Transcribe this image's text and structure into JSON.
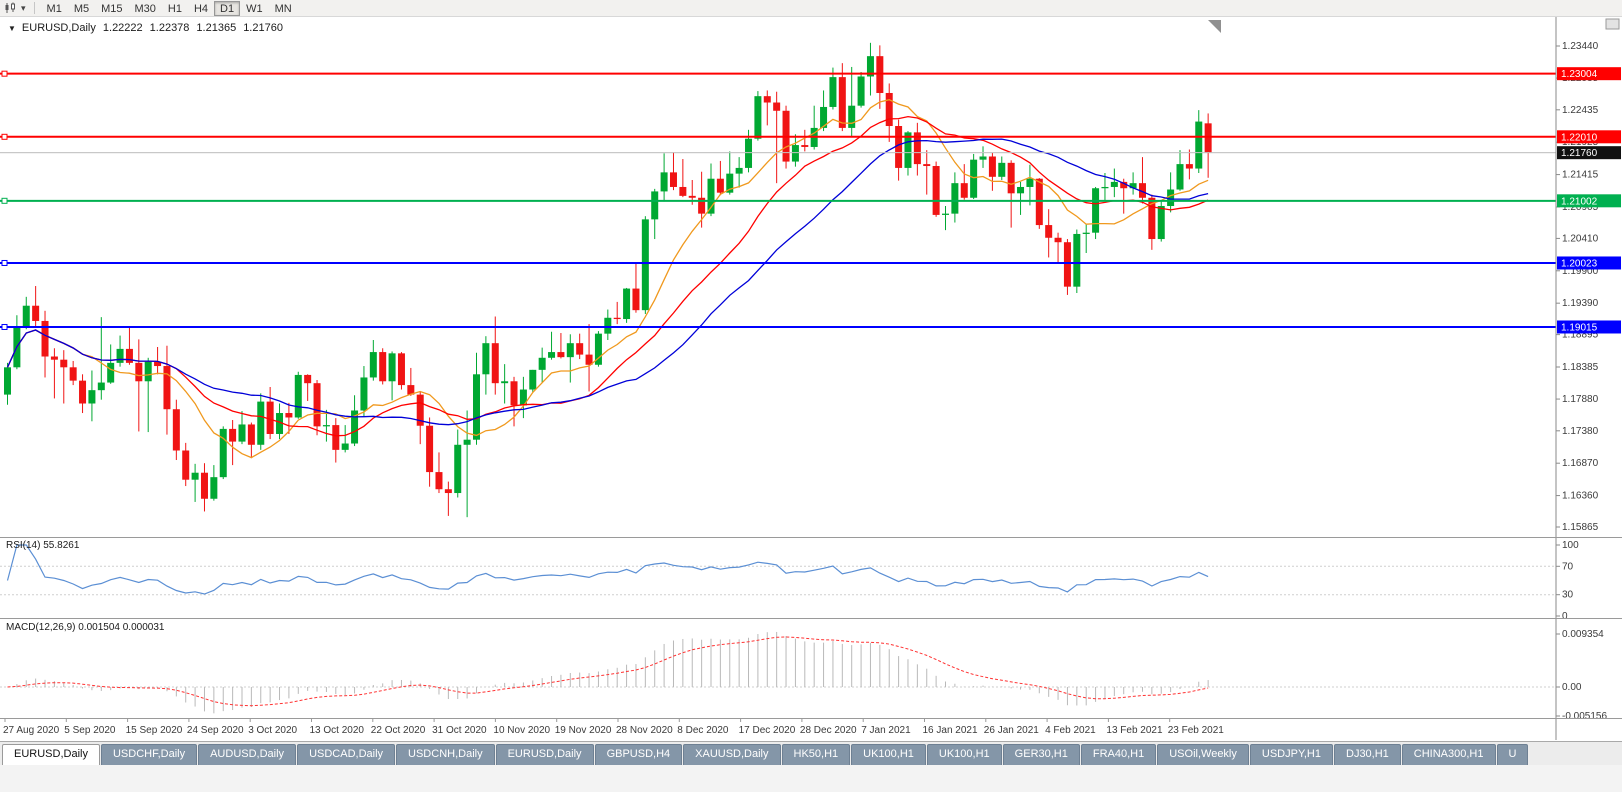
{
  "icons": {
    "collapse_triangle": "▼",
    "dropdown_caret": "▾",
    "chart_type_icon": "candlestick-chart-icon",
    "shift_marker_icon": "chart-shift-triangle"
  },
  "toolbar": {
    "timeframes": [
      "M1",
      "M5",
      "M15",
      "M30",
      "H1",
      "H4",
      "D1",
      "W1",
      "MN"
    ],
    "active_timeframe": "D1"
  },
  "price_pane": {
    "header_symbol": "EURUSD,Daily",
    "ohlc": {
      "open": "1.22222",
      "high": "1.22378",
      "low": "1.21365",
      "close": "1.21760"
    }
  },
  "rsi_pane": {
    "label": "RSI(14) 55.8261",
    "axis_labels": [
      "100",
      "70",
      "30",
      "0"
    ]
  },
  "macd_pane": {
    "label": "MACD(12,26,9) 0.001504 0.000031",
    "axis_max": "0.009354",
    "axis_zero": "0.00",
    "axis_min": "-0.005156"
  },
  "chart_data": {
    "type": "candlestick",
    "symbol": "EURUSD",
    "timeframe": "Daily",
    "candle_format": "[open, high, low, close]",
    "up_color": "#00a832",
    "down_color": "#f01414",
    "current_price": 1.2176,
    "y_ticks": [
      1.2344,
      1.22935,
      1.22435,
      1.21925,
      1.21415,
      1.20905,
      1.2041,
      1.199,
      1.1939,
      1.18895,
      1.18385,
      1.1788,
      1.1738,
      1.1687,
      1.1636,
      1.15865
    ],
    "x_labels": [
      "27 Aug 2020",
      "5 Sep 2020",
      "15 Sep 2020",
      "24 Sep 2020",
      "3 Oct 2020",
      "13 Oct 2020",
      "22 Oct 2020",
      "31 Oct 2020",
      "10 Nov 2020",
      "19 Nov 2020",
      "28 Nov 2020",
      "8 Dec 2020",
      "17 Dec 2020",
      "28 Dec 2020",
      "7 Jan 2021",
      "16 Jan 2021",
      "26 Jan 2021",
      "4 Feb 2021",
      "13 Feb 2021",
      "23 Feb 2021"
    ],
    "levels": [
      {
        "price": 1.23004,
        "label": "1.23004",
        "color": "#ff0000",
        "width": 2,
        "handle": true
      },
      {
        "price": 1.2201,
        "label": "1.22010",
        "color": "#ff0000",
        "width": 2,
        "handle": true
      },
      {
        "price": 1.2176,
        "label": "1.21760",
        "color": "#c6c6c6",
        "width": 1,
        "handle": false,
        "label_bg": "#111111"
      },
      {
        "price": 1.21002,
        "label": "1.21002",
        "color": "#00b050",
        "width": 2,
        "handle": true
      },
      {
        "price": 1.20023,
        "label": "1.20023",
        "color": "#0000ff",
        "width": 2,
        "handle": true
      },
      {
        "price": 1.19015,
        "label": "1.19015",
        "color": "#0000ff",
        "width": 2,
        "handle": true
      }
    ],
    "ma": [
      {
        "period": 9,
        "color": "#f0991e"
      },
      {
        "period": 18,
        "color": "#ff0000"
      },
      {
        "period": 28,
        "color": "#0000d8"
      }
    ],
    "rsi": {
      "period": 14,
      "value": 55.8261,
      "levels": [
        70,
        30
      ],
      "color": "#5b8fd4"
    },
    "macd": {
      "fast": 12,
      "slow": 26,
      "signal": 9,
      "macd_value": 0.001504,
      "signal_value": 3.1e-05,
      "hist_color": "#b9b9b9",
      "signal_color": "#ff3333"
    },
    "candles": [
      [
        1.1795,
        1.1845,
        1.1779,
        1.1838
      ],
      [
        1.1838,
        1.192,
        1.1835,
        1.1903
      ],
      [
        1.1903,
        1.1949,
        1.1898,
        1.1935
      ],
      [
        1.1935,
        1.1966,
        1.19,
        1.1911
      ],
      [
        1.1911,
        1.1927,
        1.1822,
        1.1855
      ],
      [
        1.1855,
        1.1868,
        1.1789,
        1.185
      ],
      [
        1.185,
        1.1865,
        1.1781,
        1.1838
      ],
      [
        1.1838,
        1.1848,
        1.181,
        1.1817
      ],
      [
        1.1817,
        1.1827,
        1.1766,
        1.1781
      ],
      [
        1.1781,
        1.1833,
        1.1753,
        1.1802
      ],
      [
        1.1802,
        1.1917,
        1.1787,
        1.1814
      ],
      [
        1.1814,
        1.1874,
        1.1812,
        1.1845
      ],
      [
        1.1845,
        1.1888,
        1.1839,
        1.1867
      ],
      [
        1.1867,
        1.19,
        1.1842,
        1.1845
      ],
      [
        1.1845,
        1.1882,
        1.1737,
        1.1816
      ],
      [
        1.1816,
        1.1853,
        1.1736,
        1.1847
      ],
      [
        1.1847,
        1.187,
        1.1827,
        1.184
      ],
      [
        1.184,
        1.1872,
        1.1732,
        1.1772
      ],
      [
        1.1772,
        1.1787,
        1.1692,
        1.1707
      ],
      [
        1.1707,
        1.1719,
        1.1651,
        1.1661
      ],
      [
        1.1661,
        1.1686,
        1.1626,
        1.1672
      ],
      [
        1.1672,
        1.1687,
        1.1611,
        1.1631
      ],
      [
        1.1631,
        1.1684,
        1.1628,
        1.1665
      ],
      [
        1.1665,
        1.1745,
        1.1662,
        1.1741
      ],
      [
        1.1741,
        1.1755,
        1.1684,
        1.1721
      ],
      [
        1.1721,
        1.1769,
        1.1717,
        1.1748
      ],
      [
        1.1748,
        1.1751,
        1.1695,
        1.1716
      ],
      [
        1.1716,
        1.1797,
        1.1708,
        1.1784
      ],
      [
        1.1784,
        1.1807,
        1.1725,
        1.1733
      ],
      [
        1.1733,
        1.1781,
        1.1725,
        1.1766
      ],
      [
        1.1766,
        1.1782,
        1.1733,
        1.1759
      ],
      [
        1.1759,
        1.1831,
        1.1757,
        1.1826
      ],
      [
        1.1826,
        1.1827,
        1.1785,
        1.1813
      ],
      [
        1.1813,
        1.1818,
        1.1731,
        1.1745
      ],
      [
        1.1745,
        1.1771,
        1.1721,
        1.1747
      ],
      [
        1.1747,
        1.1758,
        1.1688,
        1.1708
      ],
      [
        1.1708,
        1.1747,
        1.1704,
        1.1718
      ],
      [
        1.1718,
        1.1794,
        1.1714,
        1.177
      ],
      [
        1.177,
        1.184,
        1.176,
        1.1822
      ],
      [
        1.1822,
        1.1881,
        1.1817,
        1.1862
      ],
      [
        1.1862,
        1.1868,
        1.1811,
        1.1816
      ],
      [
        1.1816,
        1.1863,
        1.1786,
        1.186
      ],
      [
        1.186,
        1.1862,
        1.1803,
        1.181
      ],
      [
        1.181,
        1.1837,
        1.1793,
        1.1795
      ],
      [
        1.1795,
        1.18,
        1.1717,
        1.1746
      ],
      [
        1.1746,
        1.1759,
        1.165,
        1.1673
      ],
      [
        1.1673,
        1.1704,
        1.164,
        1.1646
      ],
      [
        1.1646,
        1.1658,
        1.1604,
        1.164
      ],
      [
        1.164,
        1.174,
        1.1633,
        1.1716
      ],
      [
        1.1716,
        1.177,
        1.1602,
        1.1724
      ],
      [
        1.1724,
        1.1861,
        1.1716,
        1.1827
      ],
      [
        1.1827,
        1.1887,
        1.1795,
        1.1876
      ],
      [
        1.1876,
        1.1918,
        1.1795,
        1.1813
      ],
      [
        1.1813,
        1.1843,
        1.1781,
        1.1816
      ],
      [
        1.1816,
        1.1823,
        1.1745,
        1.1778
      ],
      [
        1.1778,
        1.1823,
        1.1758,
        1.1803
      ],
      [
        1.1803,
        1.1834,
        1.1799,
        1.1834
      ],
      [
        1.1834,
        1.1869,
        1.1814,
        1.1853
      ],
      [
        1.1853,
        1.1894,
        1.185,
        1.1862
      ],
      [
        1.1862,
        1.1892,
        1.1852,
        1.1854
      ],
      [
        1.1854,
        1.189,
        1.1814,
        1.1876
      ],
      [
        1.1876,
        1.1891,
        1.1851,
        1.1858
      ],
      [
        1.1858,
        1.1906,
        1.18,
        1.1842
      ],
      [
        1.1842,
        1.1895,
        1.1839,
        1.1891
      ],
      [
        1.1891,
        1.1929,
        1.1881,
        1.1916
      ],
      [
        1.1916,
        1.1941,
        1.1906,
        1.1914
      ],
      [
        1.1914,
        1.1963,
        1.1908,
        1.1962
      ],
      [
        1.1962,
        1.2003,
        1.1924,
        1.1928
      ],
      [
        1.1928,
        1.2076,
        1.1922,
        1.2071
      ],
      [
        1.2071,
        1.2119,
        1.204,
        1.2115
      ],
      [
        1.2115,
        1.2175,
        1.2099,
        1.2145
      ],
      [
        1.2145,
        1.2177,
        1.2117,
        1.2122
      ],
      [
        1.2122,
        1.2166,
        1.2106,
        1.2108
      ],
      [
        1.2108,
        1.2133,
        1.2094,
        1.2105
      ],
      [
        1.2105,
        1.2146,
        1.2058,
        1.208
      ],
      [
        1.208,
        1.2159,
        1.2076,
        1.2135
      ],
      [
        1.2135,
        1.2163,
        1.2109,
        1.2113
      ],
      [
        1.2113,
        1.2178,
        1.211,
        1.2143
      ],
      [
        1.2143,
        1.2169,
        1.2121,
        1.2152
      ],
      [
        1.2152,
        1.2212,
        1.2145,
        1.2198
      ],
      [
        1.2198,
        1.2273,
        1.2195,
        1.2265
      ],
      [
        1.2265,
        1.2274,
        1.2219,
        1.2255
      ],
      [
        1.2255,
        1.2272,
        1.2128,
        1.2242
      ],
      [
        1.2242,
        1.225,
        1.2151,
        1.2162
      ],
      [
        1.2162,
        1.2205,
        1.2154,
        1.2188
      ],
      [
        1.2188,
        1.2212,
        1.2178,
        1.2185
      ],
      [
        1.2185,
        1.225,
        1.2181,
        1.2215
      ],
      [
        1.2215,
        1.2274,
        1.221,
        1.2248
      ],
      [
        1.2248,
        1.231,
        1.2244,
        1.2295
      ],
      [
        1.2295,
        1.2317,
        1.221,
        1.2215
      ],
      [
        1.2215,
        1.2311,
        1.22,
        1.225
      ],
      [
        1.225,
        1.2303,
        1.2247,
        1.2296
      ],
      [
        1.2296,
        1.2349,
        1.2266,
        1.2328
      ],
      [
        1.2328,
        1.2345,
        1.2245,
        1.227
      ],
      [
        1.227,
        1.2285,
        1.2193,
        1.2218
      ],
      [
        1.2218,
        1.2228,
        1.2132,
        1.2152
      ],
      [
        1.2152,
        1.221,
        1.214,
        1.2208
      ],
      [
        1.2208,
        1.2223,
        1.214,
        1.2158
      ],
      [
        1.2158,
        1.218,
        1.211,
        1.2155
      ],
      [
        1.2155,
        1.2162,
        1.2075,
        1.2078
      ],
      [
        1.2078,
        1.2092,
        1.2054,
        1.208
      ],
      [
        1.208,
        1.2145,
        1.2066,
        1.2128
      ],
      [
        1.2128,
        1.2158,
        1.2102,
        1.2105
      ],
      [
        1.2105,
        1.2174,
        1.2103,
        1.2165
      ],
      [
        1.2165,
        1.2186,
        1.2152,
        1.217
      ],
      [
        1.217,
        1.2176,
        1.2116,
        1.2138
      ],
      [
        1.2138,
        1.217,
        1.2133,
        1.216
      ],
      [
        1.216,
        1.2164,
        1.2058,
        1.2112
      ],
      [
        1.2112,
        1.213,
        1.2078,
        1.2122
      ],
      [
        1.2122,
        1.2157,
        1.2093,
        1.2135
      ],
      [
        1.2135,
        1.2136,
        1.2056,
        1.2062
      ],
      [
        1.2062,
        1.2087,
        1.2011,
        1.2042
      ],
      [
        1.2042,
        1.205,
        1.2003,
        1.2035
      ],
      [
        1.2035,
        1.204,
        1.1952,
        1.1965
      ],
      [
        1.1965,
        1.2055,
        1.1955,
        1.2048
      ],
      [
        1.2048,
        1.2064,
        1.2018,
        1.205
      ],
      [
        1.205,
        1.2122,
        1.204,
        1.212
      ],
      [
        1.212,
        1.2144,
        1.21,
        1.2122
      ],
      [
        1.2122,
        1.2151,
        1.2106,
        1.213
      ],
      [
        1.213,
        1.2135,
        1.208,
        1.212
      ],
      [
        1.212,
        1.2145,
        1.211,
        1.2128
      ],
      [
        1.2128,
        1.2169,
        1.2096,
        1.2105
      ],
      [
        1.2105,
        1.211,
        1.2023,
        1.204
      ],
      [
        1.204,
        1.2101,
        1.2036,
        1.2092
      ],
      [
        1.2092,
        1.2145,
        1.2082,
        1.2118
      ],
      [
        1.2118,
        1.218,
        1.2116,
        1.2158
      ],
      [
        1.2158,
        1.2181,
        1.2134,
        1.2151
      ],
      [
        1.2151,
        1.2243,
        1.2144,
        1.2225
      ],
      [
        1.22222,
        1.22378,
        1.21365,
        1.2176
      ]
    ]
  },
  "tabs": [
    {
      "label": "EURUSD,Daily",
      "active": true
    },
    {
      "label": "USDCHF,Daily",
      "active": false
    },
    {
      "label": "AUDUSD,Daily",
      "active": false
    },
    {
      "label": "USDCAD,Daily",
      "active": false
    },
    {
      "label": "USDCNH,Daily",
      "active": false
    },
    {
      "label": "EURUSD,Daily",
      "active": false
    },
    {
      "label": "GBPUSD,H4",
      "active": false
    },
    {
      "label": "XAUUSD,Daily",
      "active": false
    },
    {
      "label": "HK50,H1",
      "active": false
    },
    {
      "label": "UK100,H1",
      "active": false
    },
    {
      "label": "UK100,H1",
      "active": false
    },
    {
      "label": "GER30,H1",
      "active": false
    },
    {
      "label": "FRA40,H1",
      "active": false
    },
    {
      "label": "USOil,Weekly",
      "active": false
    },
    {
      "label": "USDJPY,H1",
      "active": false
    },
    {
      "label": "DJ30,H1",
      "active": false
    },
    {
      "label": "CHINA300,H1",
      "active": false
    },
    {
      "label": "U",
      "active": false
    }
  ]
}
